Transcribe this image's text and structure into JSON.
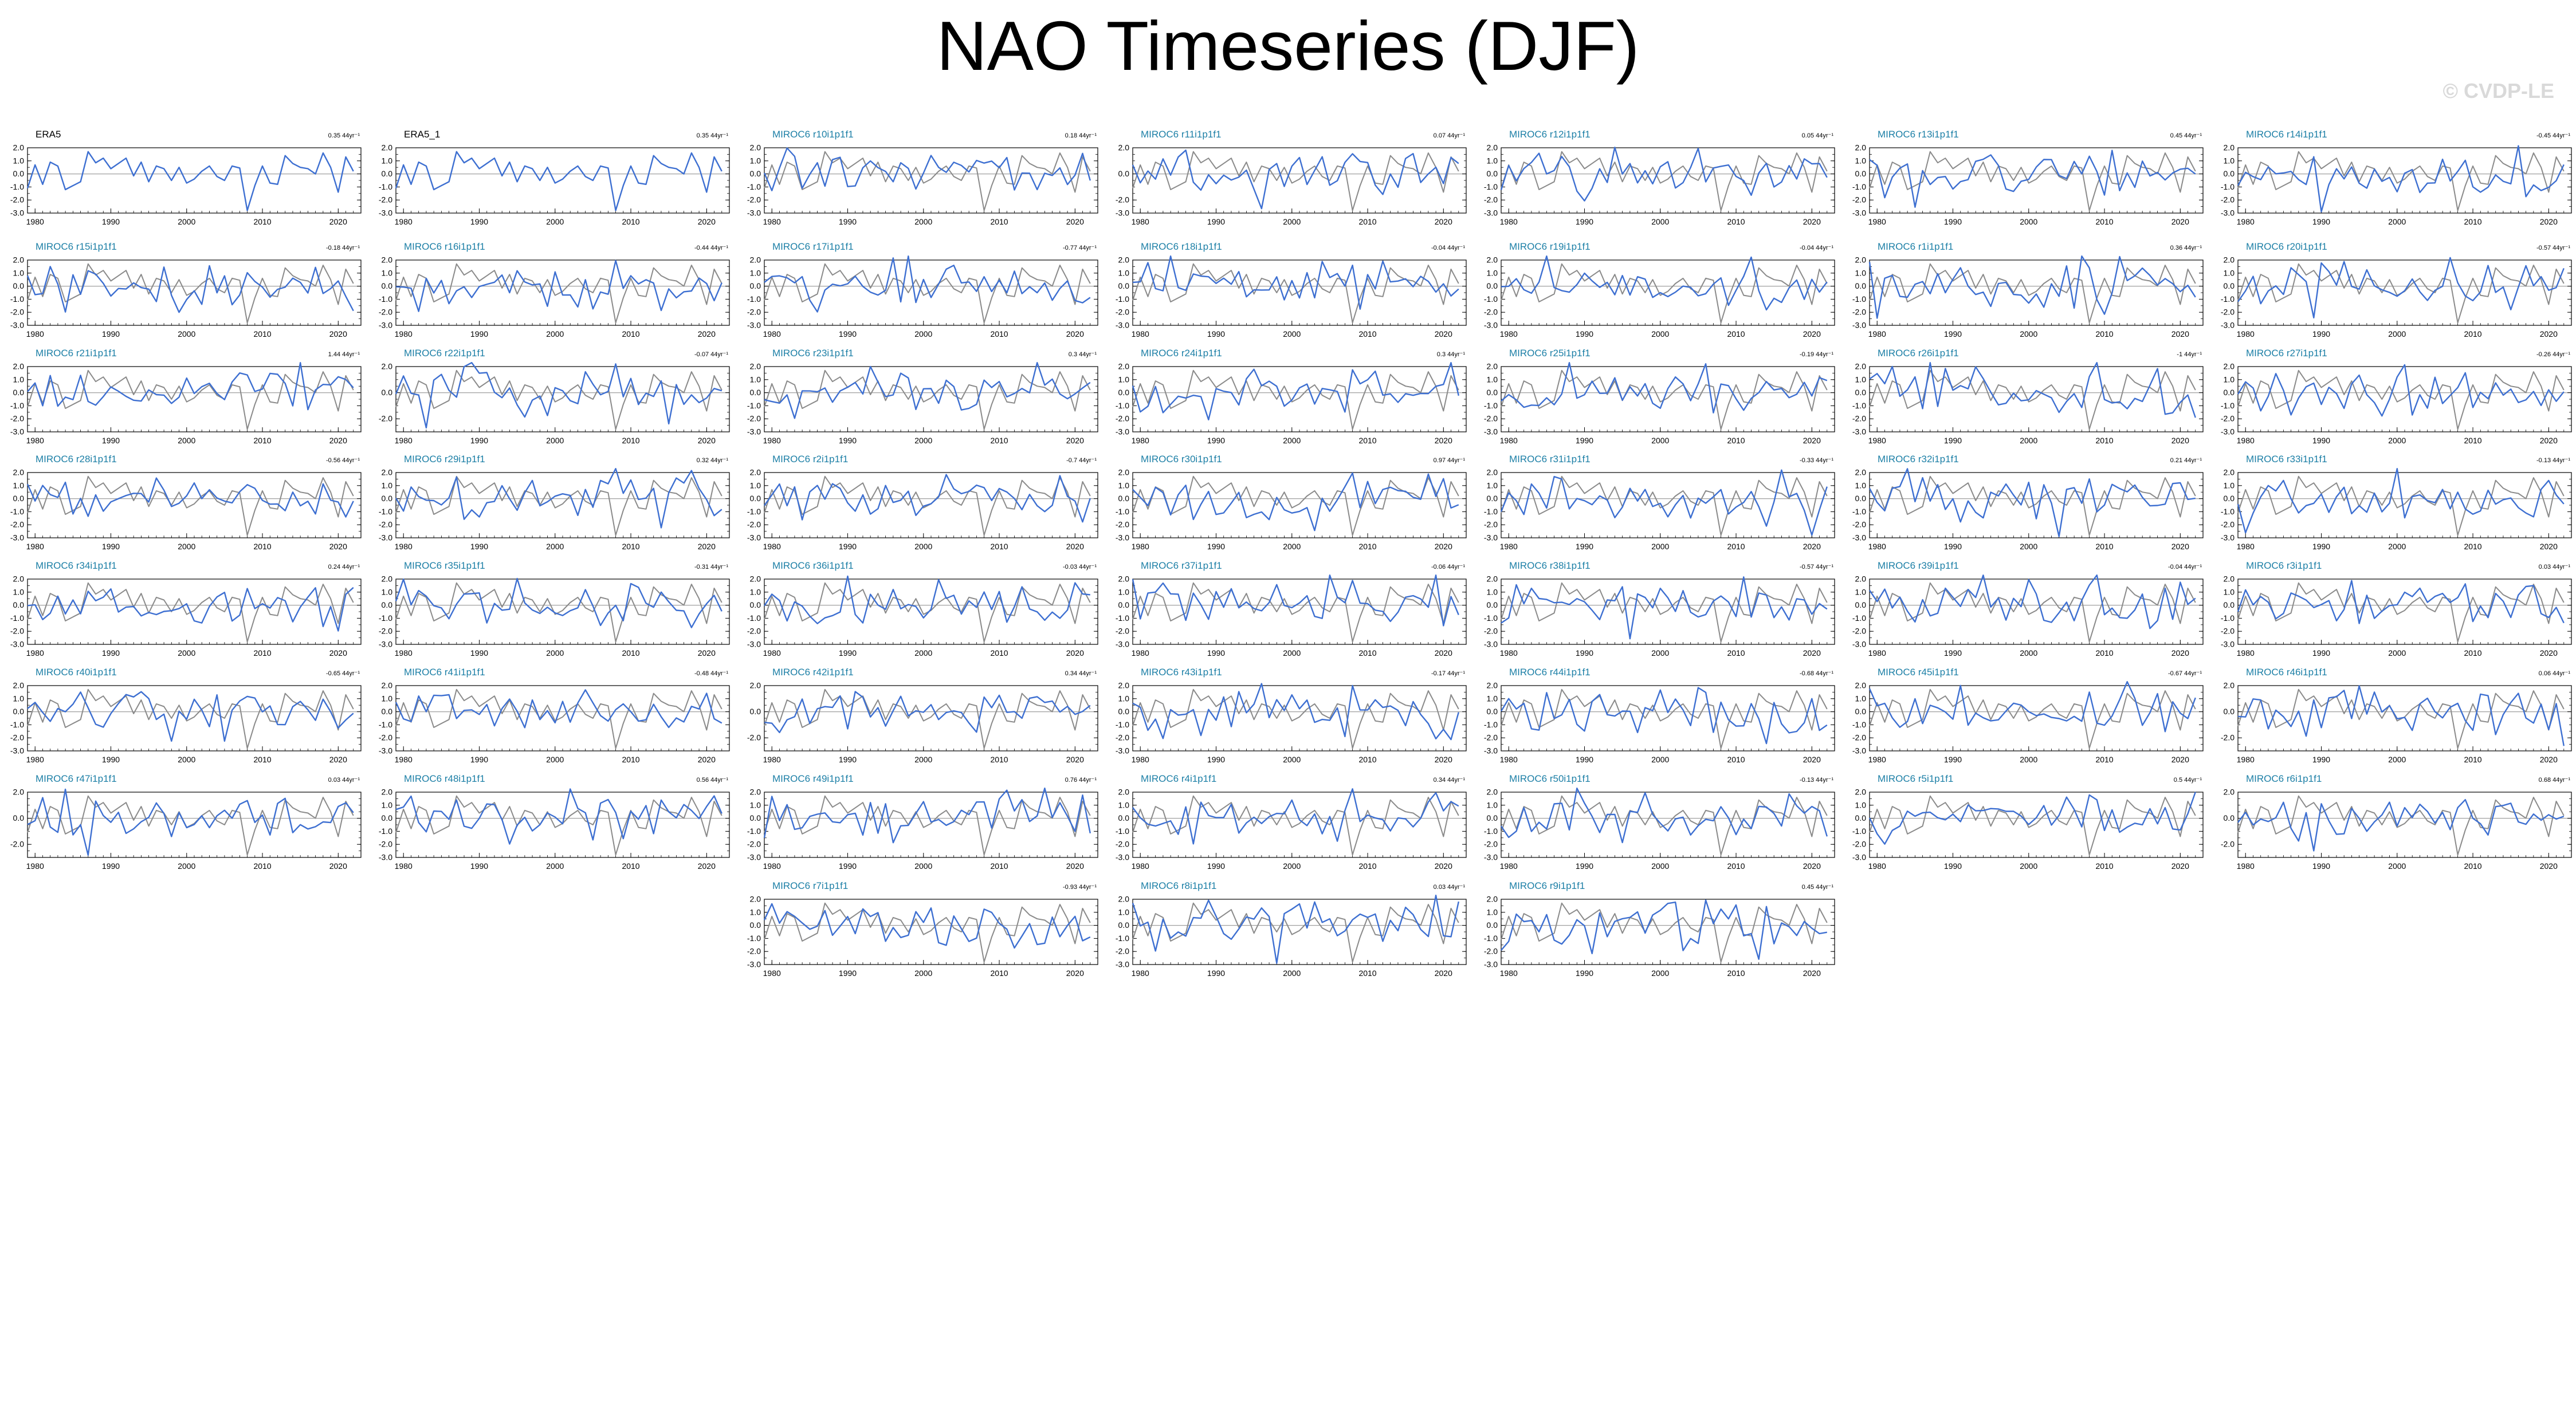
{
  "title": "NAO Timeseries (DJF)",
  "watermark": "© CVDP-LE",
  "colors": {
    "model": "#3D6FD1",
    "obs": "#8A8A8A",
    "zero": "#A0A0A0",
    "obs_label": "#000000",
    "model_label": "#1C7FA6"
  },
  "chart_data": {
    "type": "line",
    "title": "NAO Timeseries (DJF)",
    "x_ticks": [
      1980,
      1990,
      2000,
      2010,
      2020
    ],
    "xlim": [
      1979,
      2023
    ],
    "season": "DJF",
    "obs_series_name": "ERA5",
    "panels": [
      {
        "name": "ERA5",
        "trend": "0.35 44yr⁻¹",
        "ylim": [
          -3,
          2
        ],
        "yticks": [
          "2.0",
          "1.0",
          "0.0",
          "-1.0",
          "-2.0",
          "-3.0"
        ],
        "obs": true
      },
      {
        "name": "ERA5_1",
        "trend": "0.35 44yr⁻¹",
        "ylim": [
          -3,
          2
        ],
        "yticks": [
          "2.0",
          "1.0",
          "0.0",
          "-1.0",
          "-2.0",
          "-3.0"
        ],
        "obs": true
      },
      {
        "name": "MIROC6 r10i1p1f1",
        "trend": "0.18 44yr⁻¹",
        "ylim": [
          -3,
          2
        ],
        "yticks": [
          "2.0",
          "1.0",
          "0.0",
          "-1.0",
          "-2.0",
          "-3.0"
        ]
      },
      {
        "name": "MIROC6 r11i1p1f1",
        "trend": "0.07 44yr⁻¹",
        "ylim": [
          -3,
          2
        ],
        "yticks": [
          "2.0",
          "0.0",
          "-2.0",
          "-3.0"
        ]
      },
      {
        "name": "MIROC6 r12i1p1f1",
        "trend": "0.05 44yr⁻¹",
        "ylim": [
          -3,
          2
        ],
        "yticks": [
          "2.0",
          "1.0",
          "0.0",
          "-1.0",
          "-2.0",
          "-3.0"
        ]
      },
      {
        "name": "MIROC6 r13i1p1f1",
        "trend": "0.45 44yr⁻¹",
        "ylim": [
          -3,
          2
        ],
        "yticks": [
          "2.0",
          "1.0",
          "0.0",
          "-1.0",
          "-2.0",
          "-3.0"
        ]
      },
      {
        "name": "MIROC6 r14i1p1f1",
        "trend": "-0.45 44yr⁻¹",
        "ylim": [
          -3,
          2
        ],
        "yticks": [
          "2.0",
          "1.0",
          "0.0",
          "-1.0",
          "-2.0",
          "-3.0"
        ]
      },
      {
        "name": "MIROC6 r15i1p1f1",
        "trend": "-0.18 44yr⁻¹",
        "ylim": [
          -3,
          2
        ],
        "yticks": [
          "2.0",
          "1.0",
          "0.0",
          "-1.0",
          "-2.0",
          "-3.0"
        ]
      },
      {
        "name": "MIROC6 r16i1p1f1",
        "trend": "-0.44 44yr⁻¹",
        "ylim": [
          -3,
          2
        ],
        "yticks": [
          "2.0",
          "1.0",
          "0.0",
          "-1.0",
          "-2.0",
          "-3.0"
        ]
      },
      {
        "name": "MIROC6 r17i1p1f1",
        "trend": "-0.77 44yr⁻¹",
        "ylim": [
          -3,
          2
        ],
        "yticks": [
          "2.0",
          "1.0",
          "0.0",
          "-1.0",
          "-2.0",
          "-3.0"
        ]
      },
      {
        "name": "MIROC6 r18i1p1f1",
        "trend": "-0.04 44yr⁻¹",
        "ylim": [
          -3,
          2
        ],
        "yticks": [
          "2.0",
          "1.0",
          "0.0",
          "-1.0",
          "-2.0",
          "-3.0"
        ]
      },
      {
        "name": "MIROC6 r19i1p1f1",
        "trend": "-0.04 44yr⁻¹",
        "ylim": [
          -3,
          2
        ],
        "yticks": [
          "2.0",
          "1.0",
          "0.0",
          "-1.0",
          "-2.0",
          "-3.0"
        ]
      },
      {
        "name": "MIROC6 r1i1p1f1",
        "trend": "0.36 44yr⁻¹",
        "ylim": [
          -3,
          2
        ],
        "yticks": [
          "2.0",
          "1.0",
          "0.0",
          "-1.0",
          "-2.0",
          "-3.0"
        ]
      },
      {
        "name": "MIROC6 r20i1p1f1",
        "trend": "-0.57 44yr⁻¹",
        "ylim": [
          -3,
          2
        ],
        "yticks": [
          "2.0",
          "1.0",
          "0.0",
          "-1.0",
          "-2.0",
          "-3.0"
        ]
      },
      {
        "name": "MIROC6 r21i1p1f1",
        "trend": "1.44 44yr⁻¹",
        "ylim": [
          -3,
          2
        ],
        "yticks": [
          "2.0",
          "1.0",
          "0.0",
          "-1.0",
          "-2.0",
          "-3.0"
        ]
      },
      {
        "name": "MIROC6 r22i1p1f1",
        "trend": "-0.07 44yr⁻¹",
        "ylim": [
          -3,
          2
        ],
        "yticks": [
          "2.0",
          "0.0",
          "-2.0"
        ]
      },
      {
        "name": "MIROC6 r23i1p1f1",
        "trend": "0.3 44yr⁻¹",
        "ylim": [
          -3,
          2
        ],
        "yticks": [
          "2.0",
          "1.0",
          "0.0",
          "-1.0",
          "-2.0",
          "-3.0"
        ]
      },
      {
        "name": "MIROC6 r24i1p1f1",
        "trend": "0.3 44yr⁻¹",
        "ylim": [
          -3,
          2
        ],
        "yticks": [
          "2.0",
          "1.0",
          "0.0",
          "-1.0",
          "-2.0",
          "-3.0"
        ]
      },
      {
        "name": "MIROC6 r25i1p1f1",
        "trend": "-0.19 44yr⁻¹",
        "ylim": [
          -3,
          2
        ],
        "yticks": [
          "2.0",
          "1.0",
          "0.0",
          "-1.0",
          "-2.0",
          "-3.0"
        ]
      },
      {
        "name": "MIROC6 r26i1p1f1",
        "trend": "-1 44yr⁻¹",
        "ylim": [
          -3,
          2
        ],
        "yticks": [
          "2.0",
          "1.0",
          "0.0",
          "-1.0",
          "-2.0",
          "-3.0"
        ]
      },
      {
        "name": "MIROC6 r27i1p1f1",
        "trend": "-0.26 44yr⁻¹",
        "ylim": [
          -3,
          2
        ],
        "yticks": [
          "2.0",
          "1.0",
          "0.0",
          "-1.0",
          "-2.0",
          "-3.0"
        ]
      },
      {
        "name": "MIROC6 r28i1p1f1",
        "trend": "-0.56 44yr⁻¹",
        "ylim": [
          -3,
          2
        ],
        "yticks": [
          "2.0",
          "1.0",
          "0.0",
          "-1.0",
          "-2.0",
          "-3.0"
        ]
      },
      {
        "name": "MIROC6 r29i1p1f1",
        "trend": "0.32 44yr⁻¹",
        "ylim": [
          -3,
          2
        ],
        "yticks": [
          "2.0",
          "1.0",
          "0.0",
          "-1.0",
          "-2.0",
          "-3.0"
        ]
      },
      {
        "name": "MIROC6 r2i1p1f1",
        "trend": "-0.7 44yr⁻¹",
        "ylim": [
          -3,
          2
        ],
        "yticks": [
          "2.0",
          "1.0",
          "0.0",
          "-1.0",
          "-2.0",
          "-3.0"
        ]
      },
      {
        "name": "MIROC6 r30i1p1f1",
        "trend": "0.97 44yr⁻¹",
        "ylim": [
          -3,
          2
        ],
        "yticks": [
          "2.0",
          "1.0",
          "0.0",
          "-1.0",
          "-2.0",
          "-3.0"
        ]
      },
      {
        "name": "MIROC6 r31i1p1f1",
        "trend": "-0.33 44yr⁻¹",
        "ylim": [
          -3,
          2
        ],
        "yticks": [
          "2.0",
          "1.0",
          "0.0",
          "-1.0",
          "-2.0",
          "-3.0"
        ]
      },
      {
        "name": "MIROC6 r32i1p1f1",
        "trend": "0.21 44yr⁻¹",
        "ylim": [
          -3,
          2
        ],
        "yticks": [
          "2.0",
          "1.0",
          "0.0",
          "-1.0",
          "-2.0",
          "-3.0"
        ]
      },
      {
        "name": "MIROC6 r33i1p1f1",
        "trend": "-0.13 44yr⁻¹",
        "ylim": [
          -3,
          2
        ],
        "yticks": [
          "2.0",
          "1.0",
          "0.0",
          "-1.0",
          "-2.0",
          "-3.0"
        ]
      },
      {
        "name": "MIROC6 r34i1p1f1",
        "trend": "0.24 44yr⁻¹",
        "ylim": [
          -3,
          2
        ],
        "yticks": [
          "2.0",
          "1.0",
          "0.0",
          "-1.0",
          "-2.0",
          "-3.0"
        ]
      },
      {
        "name": "MIROC6 r35i1p1f1",
        "trend": "-0.31 44yr⁻¹",
        "ylim": [
          -3,
          2
        ],
        "yticks": [
          "2.0",
          "1.0",
          "0.0",
          "-1.0",
          "-2.0",
          "-3.0"
        ]
      },
      {
        "name": "MIROC6 r36i1p1f1",
        "trend": "-0.03 44yr⁻¹",
        "ylim": [
          -3,
          2
        ],
        "yticks": [
          "2.0",
          "1.0",
          "0.0",
          "-1.0",
          "-2.0",
          "-3.0"
        ]
      },
      {
        "name": "MIROC6 r37i1p1f1",
        "trend": "-0.06 44yr⁻¹",
        "ylim": [
          -3,
          2
        ],
        "yticks": [
          "2.0",
          "1.0",
          "0.0",
          "-1.0",
          "-2.0",
          "-3.0"
        ]
      },
      {
        "name": "MIROC6 r38i1p1f1",
        "trend": "-0.57 44yr⁻¹",
        "ylim": [
          -3,
          2
        ],
        "yticks": [
          "2.0",
          "1.0",
          "0.0",
          "-1.0",
          "-2.0",
          "-3.0"
        ]
      },
      {
        "name": "MIROC6 r39i1p1f1",
        "trend": "-0.04 44yr⁻¹",
        "ylim": [
          -3,
          2
        ],
        "yticks": [
          "2.0",
          "1.0",
          "0.0",
          "-1.0",
          "-2.0",
          "-3.0"
        ]
      },
      {
        "name": "MIROC6 r3i1p1f1",
        "trend": "0.03 44yr⁻¹",
        "ylim": [
          -3,
          2
        ],
        "yticks": [
          "2.0",
          "1.0",
          "0.0",
          "-1.0",
          "-2.0",
          "-3.0"
        ]
      },
      {
        "name": "MIROC6 r40i1p1f1",
        "trend": "-0.65 44yr⁻¹",
        "ylim": [
          -3,
          2
        ],
        "yticks": [
          "2.0",
          "1.0",
          "0.0",
          "-1.0",
          "-2.0",
          "-3.0"
        ]
      },
      {
        "name": "MIROC6 r41i1p1f1",
        "trend": "-0.48 44yr⁻¹",
        "ylim": [
          -3,
          2
        ],
        "yticks": [
          "2.0",
          "1.0",
          "0.0",
          "-1.0",
          "-2.0",
          "-3.0"
        ]
      },
      {
        "name": "MIROC6 r42i1p1f1",
        "trend": "0.34 44yr⁻¹",
        "ylim": [
          -3,
          2
        ],
        "yticks": [
          "2.0",
          "0.0",
          "-2.0"
        ]
      },
      {
        "name": "MIROC6 r43i1p1f1",
        "trend": "-0.17 44yr⁻¹",
        "ylim": [
          -3,
          2
        ],
        "yticks": [
          "2.0",
          "1.0",
          "0.0",
          "-1.0",
          "-2.0",
          "-3.0"
        ]
      },
      {
        "name": "MIROC6 r44i1p1f1",
        "trend": "-0.68 44yr⁻¹",
        "ylim": [
          -3,
          2
        ],
        "yticks": [
          "2.0",
          "1.0",
          "0.0",
          "-1.0",
          "-2.0",
          "-3.0"
        ]
      },
      {
        "name": "MIROC6 r45i1p1f1",
        "trend": "-0.67 44yr⁻¹",
        "ylim": [
          -3,
          2
        ],
        "yticks": [
          "2.0",
          "1.0",
          "0.0",
          "-1.0",
          "-2.0",
          "-3.0"
        ]
      },
      {
        "name": "MIROC6 r46i1p1f1",
        "trend": "0.06 44yr⁻¹",
        "ylim": [
          -3,
          2
        ],
        "yticks": [
          "2.0",
          "0.0",
          "-2.0"
        ]
      },
      {
        "name": "MIROC6 r47i1p1f1",
        "trend": "0.03 44yr⁻¹",
        "ylim": [
          -3,
          2
        ],
        "yticks": [
          "2.0",
          "0.0",
          "-2.0"
        ]
      },
      {
        "name": "MIROC6 r48i1p1f1",
        "trend": "0.56 44yr⁻¹",
        "ylim": [
          -3,
          2
        ],
        "yticks": [
          "2.0",
          "1.0",
          "0.0",
          "-1.0",
          "-2.0",
          "-3.0"
        ]
      },
      {
        "name": "MIROC6 r49i1p1f1",
        "trend": "0.76 44yr⁻¹",
        "ylim": [
          -3,
          2
        ],
        "yticks": [
          "2.0",
          "1.0",
          "0.0",
          "-1.0",
          "-2.0",
          "-3.0"
        ]
      },
      {
        "name": "MIROC6 r4i1p1f1",
        "trend": "0.34 44yr⁻¹",
        "ylim": [
          -3,
          2
        ],
        "yticks": [
          "2.0",
          "1.0",
          "0.0",
          "-1.0",
          "-2.0",
          "-3.0"
        ]
      },
      {
        "name": "MIROC6 r50i1p1f1",
        "trend": "-0.13 44yr⁻¹",
        "ylim": [
          -3,
          2
        ],
        "yticks": [
          "2.0",
          "1.0",
          "0.0",
          "-1.0",
          "-2.0",
          "-3.0"
        ]
      },
      {
        "name": "MIROC6 r5i1p1f1",
        "trend": "0.5 44yr⁻¹",
        "ylim": [
          -3,
          2
        ],
        "yticks": [
          "2.0",
          "1.0",
          "0.0",
          "-1.0",
          "-2.0",
          "-3.0"
        ]
      },
      {
        "name": "MIROC6 r6i1p1f1",
        "trend": "0.68 44yr⁻¹",
        "ylim": [
          -3,
          2
        ],
        "yticks": [
          "2.0",
          "0.0",
          "-2.0"
        ]
      },
      {
        "name": "MIROC6 r7i1p1f1",
        "trend": "-0.93 44yr⁻¹",
        "ylim": [
          -3,
          2
        ],
        "yticks": [
          "2.0",
          "1.0",
          "0.0",
          "-1.0",
          "-2.0",
          "-3.0"
        ]
      },
      {
        "name": "MIROC6 r8i1p1f1",
        "trend": "0.03 44yr⁻¹",
        "ylim": [
          -3,
          2
        ],
        "yticks": [
          "2.0",
          "1.0",
          "0.0",
          "-1.0",
          "-2.0",
          "-3.0"
        ]
      },
      {
        "name": "MIROC6 r9i1p1f1",
        "trend": "0.45 44yr⁻¹",
        "ylim": [
          -3,
          2
        ],
        "yticks": [
          "2.0",
          "1.0",
          "0.0",
          "-1.0",
          "-2.0",
          "-3.0"
        ]
      }
    ],
    "obs_values": [
      -1.1,
      0.69,
      -0.8,
      0.9,
      0.6,
      -1.2,
      -0.9,
      -0.6,
      1.7,
      0.85,
      1.2,
      0.4,
      0.8,
      1.2,
      -0.15,
      0.9,
      -0.6,
      0.6,
      0.4,
      -0.5,
      0.5,
      -0.7,
      -0.4,
      0.2,
      0.6,
      -0.2,
      -0.5,
      0.6,
      0.45,
      -2.8,
      -0.9,
      0.6,
      -0.7,
      -0.8,
      1.4,
      0.8,
      0.5,
      0.4,
      0.0,
      1.6,
      0.5,
      -1.4,
      1.3,
      0.2
    ]
  }
}
